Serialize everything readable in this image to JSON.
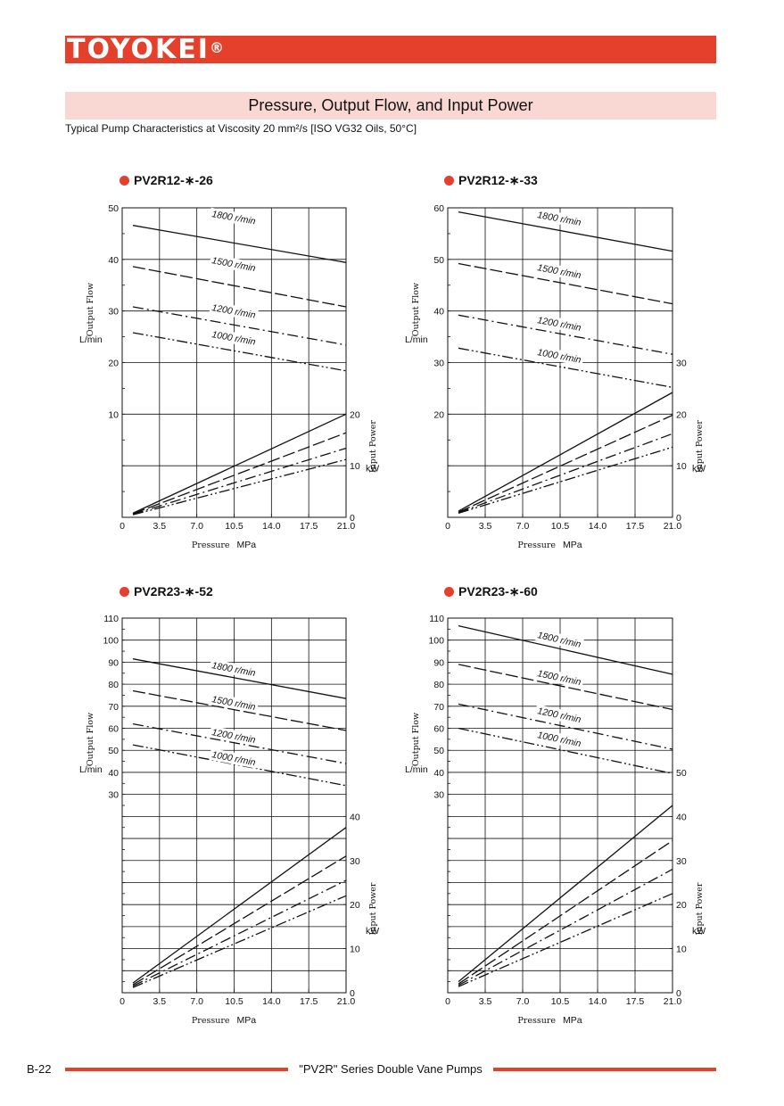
{
  "header": {
    "brand": "TOYOKEI",
    "brand_mark": "®"
  },
  "section": {
    "title": "Pressure, Output Flow, and Input Power",
    "subtitle": "Typical Pump Characteristics at Viscosity 20 mm²/s [ISO VG32 Oils, 50°C]"
  },
  "footer": {
    "page": "B-22",
    "text": "\"PV2R\" Series Double Vane Pumps"
  },
  "colors": {
    "accent": "#e4402c",
    "band": "#f9d8d3"
  },
  "chart_data": [
    {
      "type": "line",
      "title": "PV2R12-∗-26",
      "xlabel": "Pressure",
      "xunit": "MPa",
      "y_flow_label": "Output Flow",
      "y_flow_unit": "L/min",
      "y_power_label": "Input Power",
      "y_power_unit": "kW",
      "x_ticks": [
        "0",
        "3.5",
        "7.0",
        "10.5",
        "14.0",
        "17.5",
        "21.0"
      ],
      "xlim": [
        0,
        21
      ],
      "flow_ticks": [
        10,
        20,
        30,
        40,
        50
      ],
      "flow_ylim": [
        -10,
        50
      ],
      "power_ticks": [
        0,
        10,
        20
      ],
      "power_ylim": [
        0,
        60
      ],
      "flow_series": [
        {
          "name": "1800 r/min",
          "style": "solid",
          "x": [
            1,
            21
          ],
          "y": [
            46.6,
            39.4
          ]
        },
        {
          "name": "1500 r/min",
          "style": "dash",
          "x": [
            1,
            21
          ],
          "y": [
            38.6,
            30.8
          ]
        },
        {
          "name": "1200 r/min",
          "style": "dashdot",
          "x": [
            1,
            21
          ],
          "y": [
            30.8,
            23.4
          ]
        },
        {
          "name": "1000 r/min",
          "style": "dashdotdot",
          "x": [
            1,
            21
          ],
          "y": [
            25.8,
            18.4
          ]
        }
      ],
      "power_series": [
        {
          "style": "solid",
          "x": [
            1,
            21
          ],
          "y": [
            0.8,
            20
          ]
        },
        {
          "style": "dash",
          "x": [
            1,
            21
          ],
          "y": [
            0.7,
            16.4
          ]
        },
        {
          "style": "dashdot",
          "x": [
            1,
            21
          ],
          "y": [
            0.6,
            13.4
          ]
        },
        {
          "style": "dashdotdot",
          "x": [
            1,
            21
          ],
          "y": [
            0.5,
            11.2
          ]
        }
      ]
    },
    {
      "type": "line",
      "title": "PV2R12-∗-33",
      "xlabel": "Pressure",
      "xunit": "MPa",
      "y_flow_label": "Output Flow",
      "y_flow_unit": "L/min",
      "y_power_label": "Input Power",
      "y_power_unit": "kW",
      "x_ticks": [
        "0",
        "3.5",
        "7.0",
        "10.5",
        "14.0",
        "17.5",
        "21.0"
      ],
      "xlim": [
        0,
        21
      ],
      "flow_ticks": [
        20,
        30,
        40,
        50,
        60
      ],
      "flow_ylim": [
        0,
        60
      ],
      "power_ticks": [
        0,
        10,
        20,
        30
      ],
      "power_ylim": [
        0,
        60
      ],
      "flow_series": [
        {
          "name": "1800 r/min",
          "style": "solid",
          "x": [
            1,
            21
          ],
          "y": [
            59.2,
            51.6
          ]
        },
        {
          "name": "1500 r/min",
          "style": "dash",
          "x": [
            1,
            21
          ],
          "y": [
            49.2,
            41.4
          ]
        },
        {
          "name": "1200 r/min",
          "style": "dashdot",
          "x": [
            1,
            21
          ],
          "y": [
            39.2,
            31.6
          ]
        },
        {
          "name": "1000 r/min",
          "style": "dashdotdot",
          "x": [
            1,
            21
          ],
          "y": [
            32.8,
            25.2
          ]
        }
      ],
      "power_series": [
        {
          "style": "solid",
          "x": [
            1,
            21
          ],
          "y": [
            1.2,
            24.2
          ]
        },
        {
          "style": "dash",
          "x": [
            1,
            21
          ],
          "y": [
            1.0,
            19.8
          ]
        },
        {
          "style": "dashdot",
          "x": [
            1,
            21
          ],
          "y": [
            0.9,
            16.2
          ]
        },
        {
          "style": "dashdotdot",
          "x": [
            1,
            21
          ],
          "y": [
            0.8,
            13.6
          ]
        }
      ]
    },
    {
      "type": "line",
      "title": "PV2R23-∗-52",
      "xlabel": "Pressure",
      "xunit": "MPa",
      "y_flow_label": "Output Flow",
      "y_flow_unit": "L/min",
      "y_power_label": "Input Power",
      "y_power_unit": "kW",
      "x_ticks": [
        "0",
        "3.5",
        "7.0",
        "10.5",
        "14.0",
        "17.5",
        "21.0"
      ],
      "xlim": [
        0,
        21
      ],
      "flow_ticks": [
        30,
        40,
        50,
        60,
        70,
        80,
        90,
        100,
        110
      ],
      "flow_ylim": [
        -60,
        110
      ],
      "power_ticks": [
        0,
        10,
        20,
        30,
        40
      ],
      "power_ylim": [
        0,
        85
      ],
      "flow_series": [
        {
          "name": "1800 r/min",
          "style": "solid",
          "x": [
            1,
            21
          ],
          "y": [
            91.5,
            73.5
          ]
        },
        {
          "name": "1500 r/min",
          "style": "dash",
          "x": [
            1,
            21
          ],
          "y": [
            77.0,
            59.0
          ]
        },
        {
          "name": "1200 r/min",
          "style": "dashdot",
          "x": [
            1,
            21
          ],
          "y": [
            62.0,
            44.0
          ]
        },
        {
          "name": "1000 r/min",
          "style": "dashdotdot",
          "x": [
            1,
            21
          ],
          "y": [
            52.5,
            34.0
          ]
        }
      ],
      "power_series": [
        {
          "style": "solid",
          "x": [
            1,
            21
          ],
          "y": [
            2.2,
            37.5
          ]
        },
        {
          "style": "dash",
          "x": [
            1,
            21
          ],
          "y": [
            1.8,
            31.0
          ]
        },
        {
          "style": "dashdot",
          "x": [
            1,
            21
          ],
          "y": [
            1.5,
            25.5
          ]
        },
        {
          "style": "dashdotdot",
          "x": [
            1,
            21
          ],
          "y": [
            1.2,
            22.0
          ]
        }
      ]
    },
    {
      "type": "line",
      "title": "PV2R23-∗-60",
      "xlabel": "Pressure",
      "xunit": "MPa",
      "y_flow_label": "Output Flow",
      "y_flow_unit": "L/min",
      "y_power_label": "Input Power",
      "y_power_unit": "kW",
      "x_ticks": [
        "0",
        "3.5",
        "7.0",
        "10.5",
        "14.0",
        "17.5",
        "21.0"
      ],
      "xlim": [
        0,
        21
      ],
      "flow_ticks": [
        30,
        40,
        50,
        60,
        70,
        80,
        90,
        100,
        110
      ],
      "flow_ylim": [
        -60,
        110
      ],
      "power_ticks": [
        0,
        10,
        20,
        30,
        40,
        50
      ],
      "power_ylim": [
        0,
        85
      ],
      "flow_series": [
        {
          "name": "1800 r/min",
          "style": "solid",
          "x": [
            1,
            21
          ],
          "y": [
            106.5,
            84.5
          ]
        },
        {
          "name": "1500 r/min",
          "style": "dash",
          "x": [
            1,
            21
          ],
          "y": [
            89.0,
            68.5
          ]
        },
        {
          "name": "1200 r/min",
          "style": "dashdot",
          "x": [
            1,
            21
          ],
          "y": [
            71.0,
            50.5
          ]
        },
        {
          "name": "1000 r/min",
          "style": "dashdotdot",
          "x": [
            1,
            21
          ],
          "y": [
            60.0,
            39.5
          ]
        }
      ],
      "power_series": [
        {
          "style": "solid",
          "x": [
            1,
            21
          ],
          "y": [
            2.5,
            42.5
          ]
        },
        {
          "style": "dash",
          "x": [
            1,
            21
          ],
          "y": [
            2.0,
            34.5
          ]
        },
        {
          "style": "dashdot",
          "x": [
            1,
            21
          ],
          "y": [
            1.7,
            28.0
          ]
        },
        {
          "style": "dashdotdot",
          "x": [
            1,
            21
          ],
          "y": [
            1.4,
            22.5
          ]
        }
      ]
    }
  ]
}
